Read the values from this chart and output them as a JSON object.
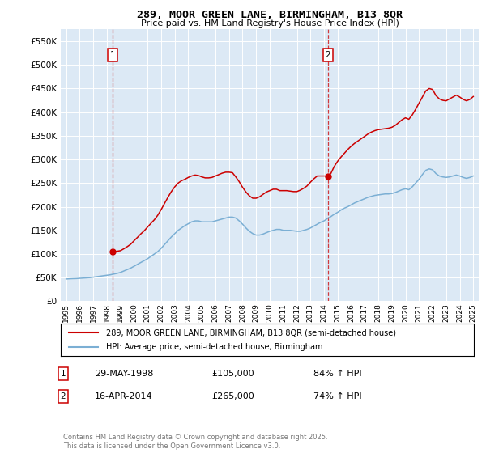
{
  "title": "289, MOOR GREEN LANE, BIRMINGHAM, B13 8QR",
  "subtitle": "Price paid vs. HM Land Registry's House Price Index (HPI)",
  "bg_color": "#dce9f5",
  "red_line_color": "#cc0000",
  "blue_line_color": "#7bafd4",
  "sale1_date": 1998.41,
  "sale1_price": 105000,
  "sale2_date": 2014.29,
  "sale2_price": 265000,
  "legend_line1": "289, MOOR GREEN LANE, BIRMINGHAM, B13 8QR (semi-detached house)",
  "legend_line2": "HPI: Average price, semi-detached house, Birmingham",
  "annotation1_date": "29-MAY-1998",
  "annotation1_price": "£105,000",
  "annotation1_hpi": "84% ↑ HPI",
  "annotation2_date": "16-APR-2014",
  "annotation2_price": "£265,000",
  "annotation2_hpi": "74% ↑ HPI",
  "footer": "Contains HM Land Registry data © Crown copyright and database right 2025.\nThis data is licensed under the Open Government Licence v3.0.",
  "ylim": [
    0,
    575000
  ],
  "yticks": [
    0,
    50000,
    100000,
    150000,
    200000,
    250000,
    300000,
    350000,
    400000,
    450000,
    500000,
    550000
  ],
  "hpi_years": [
    1995.0,
    1995.25,
    1995.5,
    1995.75,
    1996.0,
    1996.25,
    1996.5,
    1996.75,
    1997.0,
    1997.25,
    1997.5,
    1997.75,
    1998.0,
    1998.25,
    1998.5,
    1998.75,
    1999.0,
    1999.25,
    1999.5,
    1999.75,
    2000.0,
    2000.25,
    2000.5,
    2000.75,
    2001.0,
    2001.25,
    2001.5,
    2001.75,
    2002.0,
    2002.25,
    2002.5,
    2002.75,
    2003.0,
    2003.25,
    2003.5,
    2003.75,
    2004.0,
    2004.25,
    2004.5,
    2004.75,
    2005.0,
    2005.25,
    2005.5,
    2005.75,
    2006.0,
    2006.25,
    2006.5,
    2006.75,
    2007.0,
    2007.25,
    2007.5,
    2007.75,
    2008.0,
    2008.25,
    2008.5,
    2008.75,
    2009.0,
    2009.25,
    2009.5,
    2009.75,
    2010.0,
    2010.25,
    2010.5,
    2010.75,
    2011.0,
    2011.25,
    2011.5,
    2011.75,
    2012.0,
    2012.25,
    2012.5,
    2012.75,
    2013.0,
    2013.25,
    2013.5,
    2013.75,
    2014.0,
    2014.25,
    2014.5,
    2014.75,
    2015.0,
    2015.25,
    2015.5,
    2015.75,
    2016.0,
    2016.25,
    2016.5,
    2016.75,
    2017.0,
    2017.25,
    2017.5,
    2017.75,
    2018.0,
    2018.25,
    2018.5,
    2018.75,
    2019.0,
    2019.25,
    2019.5,
    2019.75,
    2020.0,
    2020.25,
    2020.5,
    2020.75,
    2021.0,
    2021.25,
    2021.5,
    2021.75,
    2022.0,
    2022.25,
    2022.5,
    2022.75,
    2023.0,
    2023.25,
    2023.5,
    2023.75,
    2024.0,
    2024.25,
    2024.5,
    2024.75,
    2025.0
  ],
  "hpi_values": [
    47000,
    47500,
    47800,
    48000,
    48500,
    49000,
    49500,
    50000,
    51000,
    52000,
    53000,
    54000,
    55000,
    56000,
    57500,
    59000,
    61000,
    64000,
    67000,
    70000,
    74000,
    78000,
    82000,
    86000,
    90000,
    95000,
    100000,
    105000,
    112000,
    120000,
    128000,
    136000,
    143000,
    150000,
    155000,
    160000,
    164000,
    168000,
    170000,
    170000,
    168000,
    168000,
    168000,
    168000,
    170000,
    172000,
    174000,
    176000,
    178000,
    178000,
    176000,
    170000,
    163000,
    155000,
    148000,
    143000,
    140000,
    140000,
    142000,
    145000,
    148000,
    150000,
    152000,
    152000,
    150000,
    150000,
    150000,
    149000,
    148000,
    148000,
    150000,
    152000,
    155000,
    159000,
    163000,
    167000,
    170000,
    175000,
    179000,
    184000,
    188000,
    193000,
    197000,
    200000,
    204000,
    208000,
    211000,
    214000,
    217000,
    220000,
    222000,
    224000,
    225000,
    226000,
    227000,
    227000,
    228000,
    230000,
    233000,
    236000,
    238000,
    236000,
    242000,
    250000,
    258000,
    268000,
    277000,
    280000,
    278000,
    270000,
    265000,
    263000,
    262000,
    263000,
    265000,
    267000,
    265000,
    262000,
    260000,
    262000,
    265000
  ],
  "price_years": [
    1998.41,
    1998.5,
    1998.75,
    1999.0,
    1999.25,
    1999.5,
    1999.75,
    2000.0,
    2000.25,
    2000.5,
    2000.75,
    2001.0,
    2001.25,
    2001.5,
    2001.75,
    2002.0,
    2002.25,
    2002.5,
    2002.75,
    2003.0,
    2003.25,
    2003.5,
    2003.75,
    2004.0,
    2004.25,
    2004.5,
    2004.75,
    2005.0,
    2005.25,
    2005.5,
    2005.75,
    2006.0,
    2006.25,
    2006.5,
    2006.75,
    2007.0,
    2007.25,
    2007.5,
    2007.75,
    2008.0,
    2008.25,
    2008.5,
    2008.75,
    2009.0,
    2009.25,
    2009.5,
    2009.75,
    2010.0,
    2010.25,
    2010.5,
    2010.75,
    2011.0,
    2011.25,
    2011.5,
    2011.75,
    2012.0,
    2012.25,
    2012.5,
    2012.75,
    2013.0,
    2013.25,
    2013.5,
    2013.75,
    2014.0,
    2014.25,
    2014.29,
    2014.5,
    2014.75,
    2015.0,
    2015.25,
    2015.5,
    2015.75,
    2016.0,
    2016.25,
    2016.5,
    2016.75,
    2017.0,
    2017.25,
    2017.5,
    2017.75,
    2018.0,
    2018.25,
    2018.5,
    2018.75,
    2019.0,
    2019.25,
    2019.5,
    2019.75,
    2020.0,
    2020.25,
    2020.5,
    2020.75,
    2021.0,
    2021.25,
    2021.5,
    2021.75,
    2022.0,
    2022.25,
    2022.5,
    2022.75,
    2023.0,
    2023.25,
    2023.5,
    2023.75,
    2024.0,
    2024.25,
    2024.5,
    2024.75,
    2025.0
  ],
  "price_values": [
    105000,
    105000,
    105800,
    107000,
    111000,
    115500,
    120500,
    128000,
    135000,
    142500,
    149000,
    157000,
    165000,
    172500,
    182000,
    194000,
    207000,
    220000,
    232000,
    242000,
    250000,
    255000,
    258000,
    262000,
    265000,
    267000,
    266000,
    263000,
    261000,
    261000,
    262000,
    265000,
    268000,
    271000,
    273000,
    273000,
    272000,
    263000,
    253000,
    241000,
    231000,
    223000,
    218000,
    218000,
    221000,
    226000,
    231000,
    234000,
    237000,
    237000,
    234000,
    234000,
    234000,
    233000,
    232000,
    232000,
    235000,
    239000,
    244000,
    252000,
    259000,
    265000,
    265000,
    265000,
    265000,
    265000,
    270000,
    285000,
    296000,
    305000,
    313000,
    321000,
    328000,
    334000,
    339000,
    344000,
    349000,
    354000,
    358000,
    361000,
    363000,
    364000,
    365000,
    366000,
    368000,
    372000,
    378000,
    384000,
    388000,
    385000,
    394000,
    406000,
    419000,
    432000,
    445000,
    450000,
    448000,
    435000,
    428000,
    425000,
    424000,
    428000,
    432000,
    436000,
    432000,
    427000,
    424000,
    427000,
    433000
  ]
}
